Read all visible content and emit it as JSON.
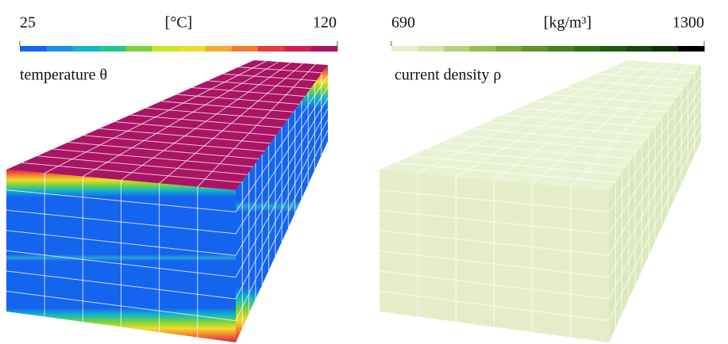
{
  "panels": [
    {
      "min_label": "25",
      "unit": "[°C]",
      "max_label": "120",
      "label": "temperature θ",
      "colormap": [
        "#1464f0",
        "#1e8cf0",
        "#14b4c8",
        "#1ec88c",
        "#78d23c",
        "#c8e628",
        "#f0dc28",
        "#f5aa32",
        "#f57832",
        "#e63c3c",
        "#d21e50",
        "#aa1464"
      ]
    },
    {
      "min_label": "690",
      "unit": "[kg/m³]",
      "max_label": "1300",
      "label": "current density ρ",
      "colormap": [
        "#e6efcc",
        "#d2e6a5",
        "#b4d278",
        "#96be50",
        "#78aa32",
        "#5a9628",
        "#46821e",
        "#327014",
        "#1e5a0f",
        "#144a0a",
        "#0a320a",
        "#000000"
      ]
    }
  ]
}
